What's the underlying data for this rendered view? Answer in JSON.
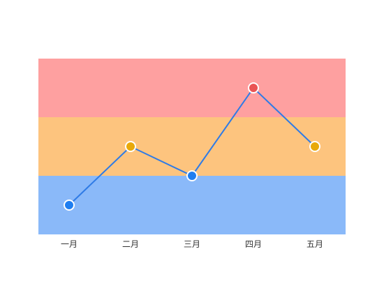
{
  "chart_data": {
    "type": "line",
    "categories": [
      "一月",
      "二月",
      "三月",
      "四月",
      "五月"
    ],
    "series": [
      {
        "values": [
          1,
          3,
          2,
          5,
          3
        ],
        "line_color": "#2f7be6",
        "point_colors": [
          "#1f7ef0",
          "#e8a90a",
          "#1f7ef0",
          "#ea5454",
          "#e8a90a"
        ]
      }
    ],
    "ylim": [
      0,
      6
    ],
    "bands": [
      {
        "from": 0,
        "to": 2,
        "color": "#8ab9f9"
      },
      {
        "from": 2,
        "to": 4,
        "color": "#fdc47e"
      },
      {
        "from": 4,
        "to": 6,
        "color": "#fea0a0"
      }
    ],
    "title": "",
    "xlabel": "",
    "ylabel": "",
    "grid": false,
    "legend": "none"
  }
}
